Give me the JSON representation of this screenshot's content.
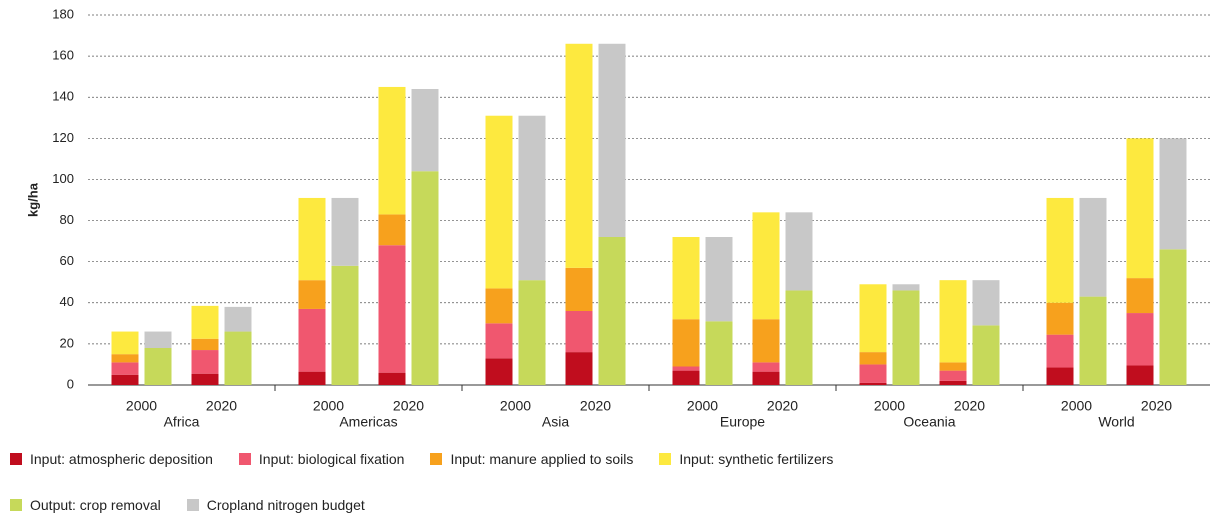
{
  "chart_data": {
    "type": "grouped-stacked-bar",
    "y_label": "kg/ha",
    "groups": [
      "Africa",
      "Americas",
      "Asia",
      "Europe",
      "Oceania",
      "World"
    ],
    "categories": [
      "2000",
      "2020",
      "2000",
      "2020",
      "2000",
      "2020",
      "2000",
      "2020",
      "2000",
      "2020",
      "2000",
      "2020"
    ],
    "series": [
      {
        "name": "Input: atmospheric deposition",
        "color": "#c00d1e",
        "stack": 1,
        "values": [
          5,
          5.5,
          6.5,
          6,
          13,
          16,
          7,
          6.5,
          1,
          2,
          8.5,
          9.5
        ]
      },
      {
        "name": "Input: biological fixation",
        "color": "#f0576f",
        "stack": 1,
        "values": [
          6,
          11.5,
          30.5,
          62,
          17,
          20,
          2,
          4.5,
          9,
          5,
          16,
          25.5
        ]
      },
      {
        "name": "Input: manure applied to soils",
        "color": "#f7a11d",
        "stack": 1,
        "values": [
          4,
          5.5,
          14,
          15,
          17,
          21,
          23,
          21,
          6,
          4,
          15.5,
          17
        ]
      },
      {
        "name": "Input: synthetic fertilizers",
        "color": "#fde93f",
        "stack": 1,
        "values": [
          11,
          16,
          40,
          62,
          84,
          109,
          40,
          52,
          33,
          40,
          51,
          68
        ]
      },
      {
        "name": "Output: crop removal",
        "color": "#c6d95a",
        "stack": 2,
        "values": [
          18,
          26,
          58,
          104,
          51,
          72,
          31,
          46,
          46,
          29,
          43,
          66
        ]
      },
      {
        "name": "Cropland nitrogen budget",
        "color": "#c8c8c8",
        "stack": 2,
        "values": [
          8,
          12,
          33,
          40,
          80,
          94,
          41,
          38,
          3,
          22,
          48,
          54
        ]
      }
    ],
    "ylim": [
      0,
      180
    ],
    "yticks": [
      0,
      20,
      40,
      60,
      80,
      100,
      120,
      140,
      160,
      180
    ],
    "grid": true
  }
}
